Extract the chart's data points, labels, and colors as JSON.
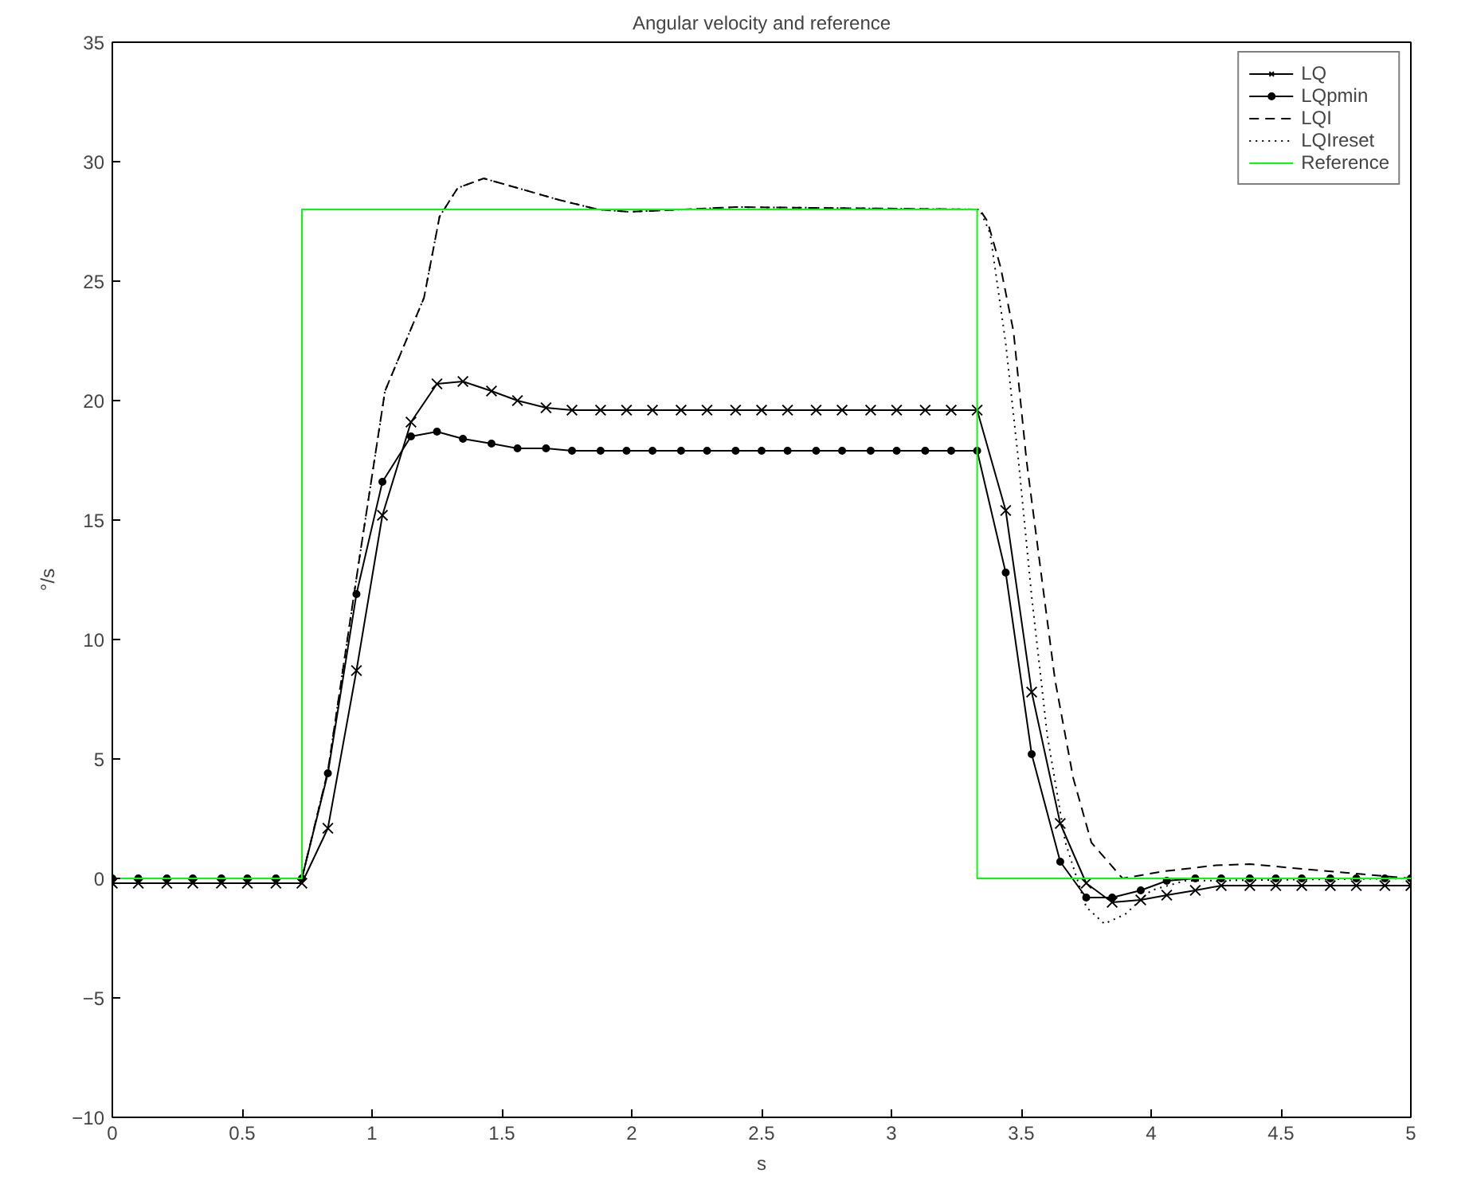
{
  "chart_data": {
    "type": "line",
    "title": "Angular velocity and reference",
    "xlabel": "s",
    "ylabel": "°/s",
    "xlim": [
      0,
      5
    ],
    "ylim": [
      -10,
      35
    ],
    "xticks": [
      0,
      0.5,
      1,
      1.5,
      2,
      2.5,
      3,
      3.5,
      4,
      4.5,
      5
    ],
    "yticks": [
      -10,
      -5,
      0,
      5,
      10,
      15,
      20,
      25,
      30,
      35
    ],
    "grid": false,
    "legend": "top right",
    "series": [
      {
        "name": "LQ",
        "color": "#000000",
        "marker": "cross",
        "line_style": "solid",
        "x": [
          0,
          0.1,
          0.21,
          0.31,
          0.42,
          0.52,
          0.63,
          0.73,
          0.83,
          0.94,
          1.04,
          1.15,
          1.25,
          1.35,
          1.46,
          1.56,
          1.67,
          1.77,
          1.88,
          1.98,
          2.08,
          2.19,
          2.29,
          2.4,
          2.5,
          2.6,
          2.71,
          2.81,
          2.92,
          3.02,
          3.13,
          3.23,
          3.33,
          3.44,
          3.54,
          3.65,
          3.75,
          3.85,
          3.96,
          4.06,
          4.17,
          4.27,
          4.38,
          4.48,
          4.58,
          4.69,
          4.79,
          4.9,
          5
        ],
        "values": [
          -0.2,
          -0.2,
          -0.2,
          -0.2,
          -0.2,
          -0.2,
          -0.2,
          -0.2,
          2.1,
          8.7,
          15.2,
          19.1,
          20.7,
          20.8,
          20.4,
          20.0,
          19.7,
          19.6,
          19.6,
          19.6,
          19.6,
          19.6,
          19.6,
          19.6,
          19.6,
          19.6,
          19.6,
          19.6,
          19.6,
          19.6,
          19.6,
          19.6,
          19.6,
          15.4,
          7.8,
          2.3,
          -0.2,
          -1.0,
          -0.9,
          -0.7,
          -0.5,
          -0.3,
          -0.3,
          -0.3,
          -0.3,
          -0.3,
          -0.3,
          -0.3,
          -0.3
        ]
      },
      {
        "name": "LQpmin",
        "color": "#000000",
        "marker": "circle",
        "line_style": "solid",
        "x": [
          0,
          0.1,
          0.21,
          0.31,
          0.42,
          0.52,
          0.63,
          0.73,
          0.83,
          0.94,
          1.04,
          1.15,
          1.25,
          1.35,
          1.46,
          1.56,
          1.67,
          1.77,
          1.88,
          1.98,
          2.08,
          2.19,
          2.29,
          2.4,
          2.5,
          2.6,
          2.71,
          2.81,
          2.92,
          3.02,
          3.13,
          3.23,
          3.33,
          3.44,
          3.54,
          3.65,
          3.75,
          3.85,
          3.96,
          4.06,
          4.17,
          4.27,
          4.38,
          4.48,
          4.58,
          4.69,
          4.79,
          4.9,
          5
        ],
        "values": [
          0,
          0,
          0,
          0,
          0,
          0,
          0,
          0,
          4.4,
          11.9,
          16.6,
          18.5,
          18.7,
          18.4,
          18.2,
          18.0,
          18.0,
          17.9,
          17.9,
          17.9,
          17.9,
          17.9,
          17.9,
          17.9,
          17.9,
          17.9,
          17.9,
          17.9,
          17.9,
          17.9,
          17.9,
          17.9,
          17.9,
          12.8,
          5.2,
          0.7,
          -0.8,
          -0.8,
          -0.5,
          -0.1,
          0,
          0,
          0,
          0,
          0,
          0,
          0,
          0,
          0
        ]
      },
      {
        "name": "LQI",
        "color": "#000000",
        "marker": "none",
        "line_style": "dashed",
        "x": [
          0,
          0.73,
          0.83,
          0.95,
          1.05,
          1.2,
          1.26,
          1.33,
          1.43,
          1.56,
          1.72,
          1.87,
          1.99,
          2.2,
          2.4,
          3.34,
          3.37,
          3.42,
          3.47,
          3.52,
          3.57,
          3.63,
          3.7,
          3.77,
          3.89,
          4.05,
          4.25,
          4.38,
          4.58,
          4.79,
          5
        ],
        "values": [
          0,
          0,
          4.5,
          13.3,
          20.4,
          24.3,
          27.7,
          28.9,
          29.3,
          28.9,
          28.4,
          28.0,
          27.9,
          28.0,
          28.1,
          28.0,
          27.5,
          25.6,
          22.9,
          17.5,
          13.3,
          8.3,
          4.2,
          1.5,
          0,
          0.3,
          0.55,
          0.6,
          0.4,
          0.2,
          0
        ]
      },
      {
        "name": "LQIreset",
        "color": "#000000",
        "marker": "none",
        "line_style": "dotted",
        "x": [
          0,
          0.73,
          0.83,
          0.95,
          1.05,
          1.2,
          1.26,
          1.33,
          1.43,
          1.56,
          1.72,
          1.87,
          1.99,
          2.2,
          2.4,
          3.34,
          3.38,
          3.44,
          3.49,
          3.54,
          3.6,
          3.67,
          3.75,
          3.82,
          3.9,
          4.0,
          4.13,
          5
        ],
        "values": [
          0,
          0,
          4.5,
          13.3,
          20.4,
          24.3,
          27.7,
          28.9,
          29.3,
          28.9,
          28.4,
          28.0,
          27.9,
          28.0,
          28.1,
          28.0,
          27,
          22.4,
          17.4,
          11.8,
          6.0,
          1.5,
          -1.2,
          -1.9,
          -1.5,
          -0.5,
          -0.1,
          0
        ]
      },
      {
        "name": "Reference",
        "color": "#00ff00",
        "marker": "none",
        "line_style": "solid",
        "x": [
          0,
          0.73,
          0.73,
          3.33,
          3.33,
          5
        ],
        "values": [
          0,
          0,
          28,
          28,
          0,
          0
        ]
      }
    ]
  }
}
